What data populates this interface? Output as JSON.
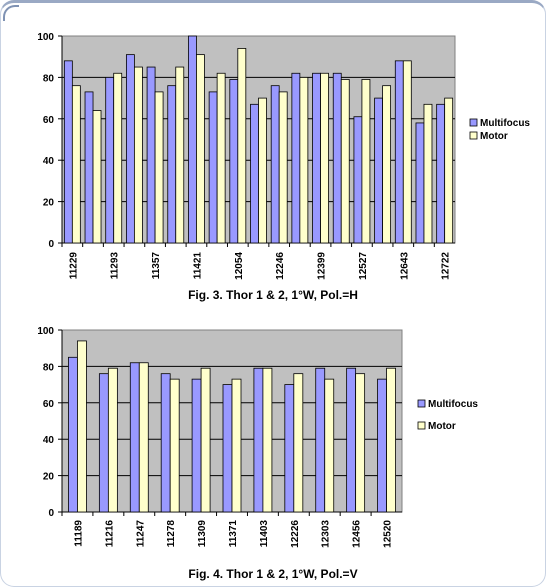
{
  "chart_data": [
    {
      "type": "bar",
      "title": "Fig. 3. Thor 1 & 2, 1°W, Pol.=H",
      "xlabel": "",
      "ylabel": "",
      "ylim": [
        0,
        100
      ],
      "yticks": [
        0,
        20,
        40,
        60,
        80,
        100
      ],
      "grid": true,
      "legend_position": "right",
      "plot_background": "#c0c0c0",
      "categories": [
        "11229",
        "",
        "11293",
        "",
        "11357",
        "",
        "11421",
        "",
        "12054",
        "",
        "12246",
        "",
        "12399",
        "",
        "12527",
        "",
        "12643",
        "",
        "12722"
      ],
      "series": [
        {
          "name": "Multifocus",
          "color": "#9999ff",
          "values": [
            88,
            73,
            80,
            91,
            85,
            76,
            100,
            73,
            79,
            67,
            76,
            82,
            82,
            82,
            61,
            70,
            88,
            58,
            67
          ]
        },
        {
          "name": "Motor",
          "color": "#ffffcc",
          "values": [
            76,
            64,
            82,
            85,
            73,
            85,
            91,
            82,
            94,
            70,
            73,
            80,
            82,
            79,
            79,
            76,
            88,
            67,
            70
          ]
        }
      ]
    },
    {
      "type": "bar",
      "title": "Fig. 4. Thor 1 & 2, 1°W, Pol.=V",
      "xlabel": "",
      "ylabel": "",
      "ylim": [
        0,
        100
      ],
      "yticks": [
        0,
        20,
        40,
        60,
        80,
        100
      ],
      "grid": true,
      "legend_position": "right",
      "plot_background": "#c0c0c0",
      "categories": [
        "11189",
        "11216",
        "11247",
        "11278",
        "11309",
        "11371",
        "11403",
        "12226",
        "12303",
        "12456",
        "12520"
      ],
      "series": [
        {
          "name": "Multifocus",
          "color": "#9999ff",
          "values": [
            85,
            76,
            82,
            76,
            73,
            70,
            79,
            70,
            79,
            79,
            73
          ]
        },
        {
          "name": "Motor",
          "color": "#ffffcc",
          "values": [
            94,
            79,
            82,
            73,
            79,
            73,
            79,
            76,
            73,
            76,
            79
          ]
        }
      ]
    }
  ]
}
